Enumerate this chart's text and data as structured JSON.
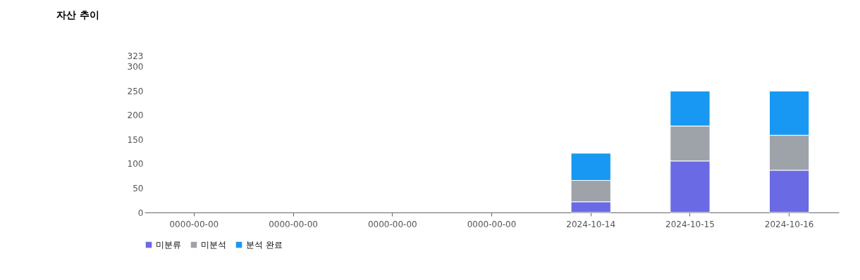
{
  "chart_data": {
    "type": "bar",
    "title": "자산 추이",
    "stacked": true,
    "categories": [
      "0000-00-00",
      "0000-00-00",
      "0000-00-00",
      "0000-00-00",
      "2024-10-14",
      "2024-10-15",
      "2024-10-16"
    ],
    "series": [
      {
        "name": "미분류",
        "color": "#6a6ae4",
        "values": [
          0,
          0,
          0,
          0,
          22,
          106,
          87
        ]
      },
      {
        "name": "미분석",
        "color": "#9ea3aa",
        "values": [
          0,
          0,
          0,
          0,
          44,
          72,
          72
        ]
      },
      {
        "name": "분석 완료",
        "color": "#1898f2",
        "values": [
          0,
          0,
          0,
          0,
          56,
          72,
          91
        ]
      }
    ],
    "ylim": [
      0,
      323
    ],
    "yticks": [
      0,
      50,
      100,
      150,
      200,
      250,
      300,
      323
    ],
    "grid": false,
    "legend": "bottom"
  }
}
